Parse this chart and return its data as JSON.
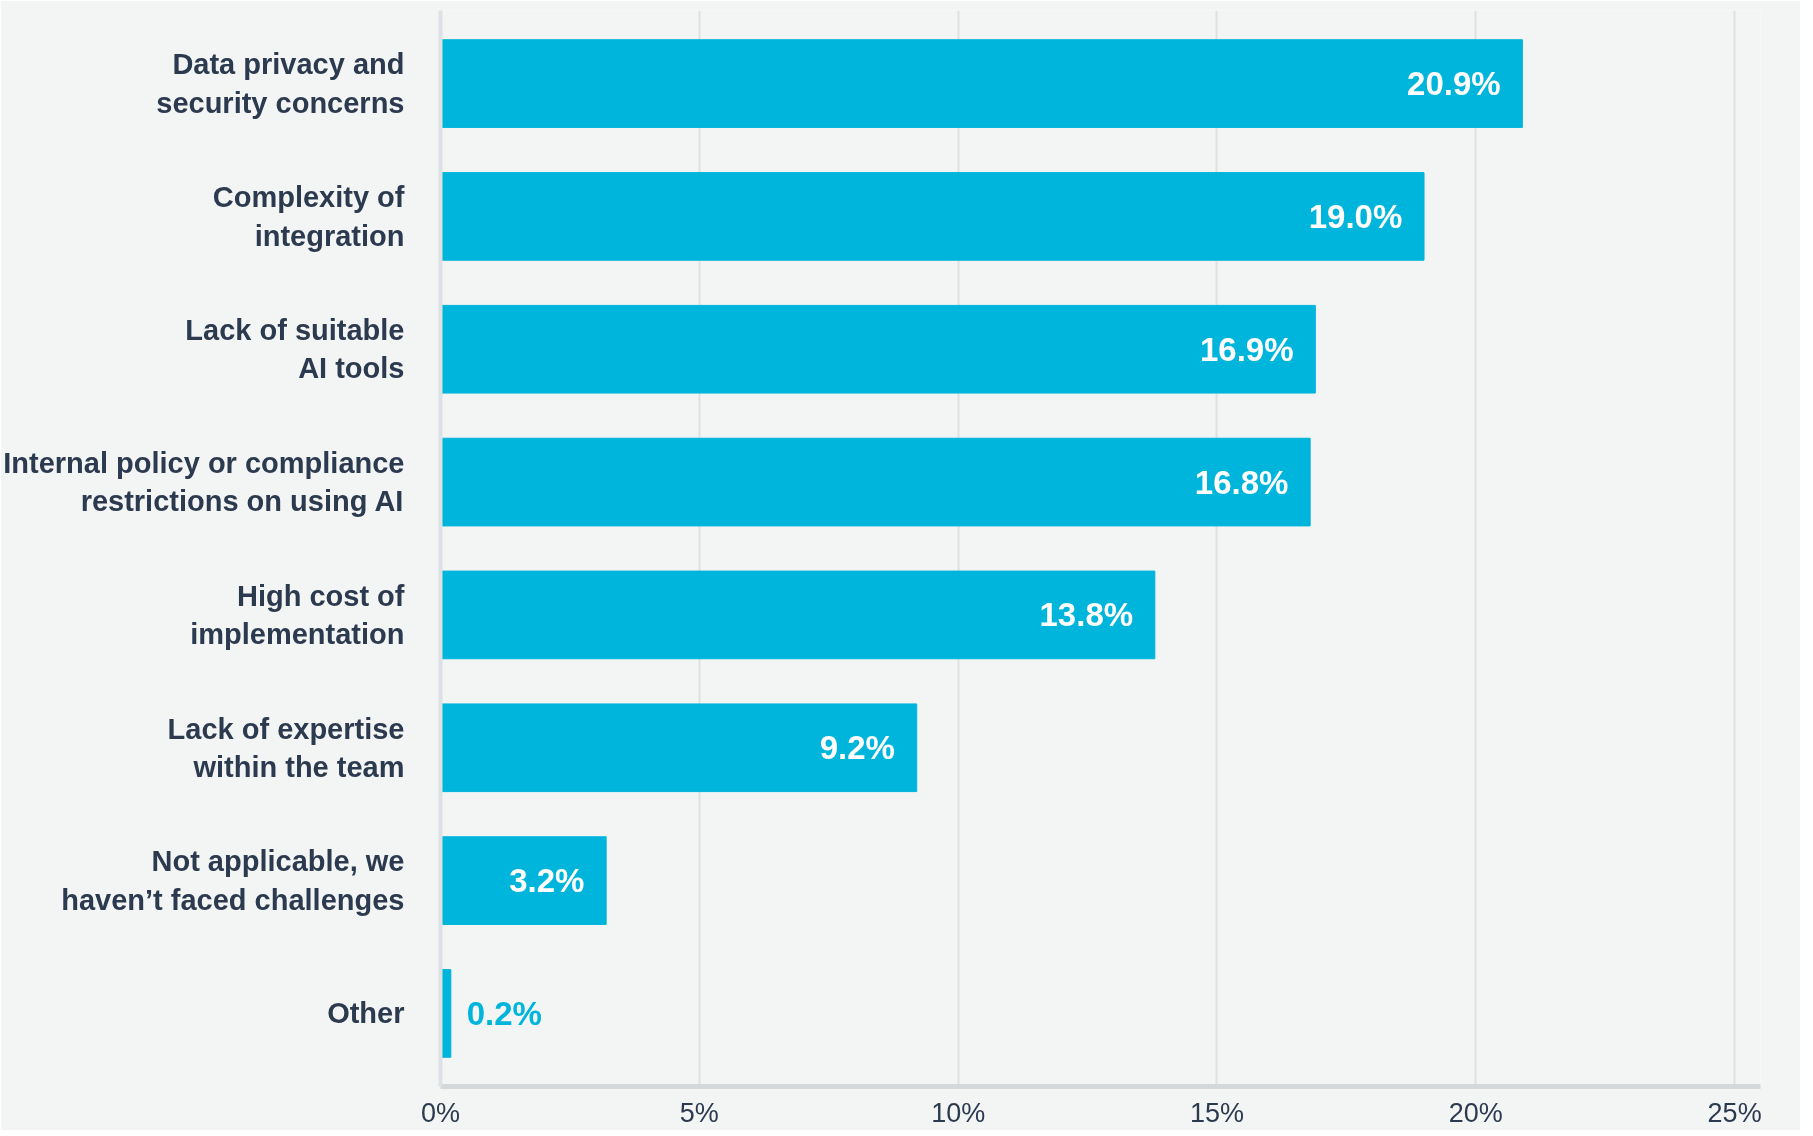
{
  "chart_data": {
    "type": "bar",
    "orientation": "horizontal",
    "categories": [
      "Data privacy and security concerns",
      "Complexity of integration",
      "Lack of suitable AI tools",
      "Internal policy or compliance restrictions on using AI",
      "High cost of implementation",
      "Lack of expertise within the team",
      "Not applicable, we haven’t faced challenges",
      "Other"
    ],
    "values": [
      20.9,
      19.0,
      16.9,
      16.8,
      13.8,
      9.2,
      3.2,
      0.2
    ],
    "value_labels": [
      "20.9%",
      "19.0%",
      "16.9%",
      "16.8%",
      "13.8%",
      "9.2%",
      "3.2%",
      "0.2%"
    ],
    "color": "#00b5db",
    "xlim": [
      0,
      25.5
    ],
    "xticks": [
      {
        "value": 0,
        "label": "0%"
      },
      {
        "value": 5,
        "label": "5%"
      },
      {
        "value": 10,
        "label": "10%"
      },
      {
        "value": 15,
        "label": "15%"
      },
      {
        "value": 20,
        "label": "20%"
      },
      {
        "value": 25,
        "label": "25%"
      }
    ],
    "grid": "x"
  }
}
